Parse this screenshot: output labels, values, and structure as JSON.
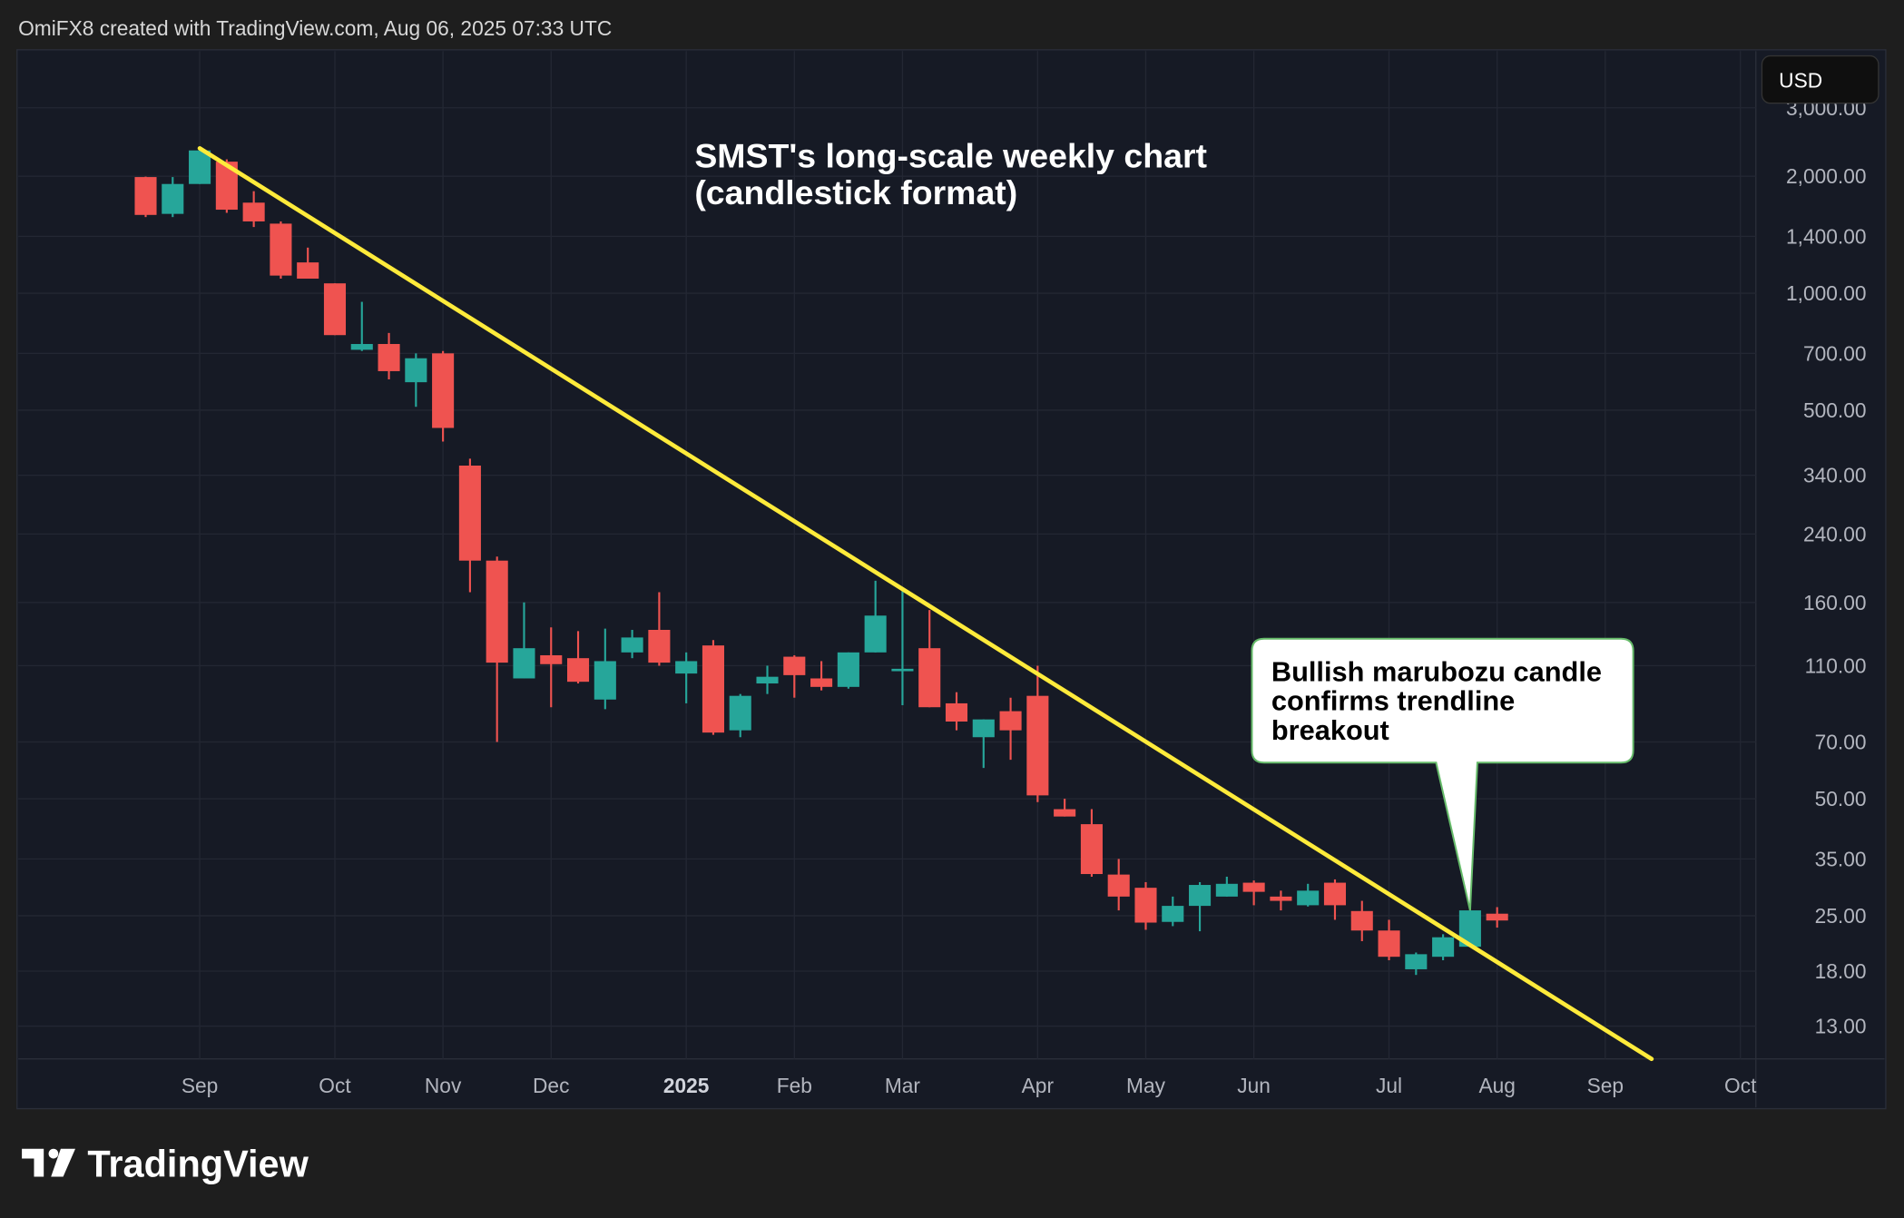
{
  "header": {
    "attribution": "OmiFX8 created with TradingView.com, Aug 06, 2025 07:33 UTC"
  },
  "currency_button": "USD",
  "branding": {
    "logo_text": "TradingView"
  },
  "colors": {
    "background": "#161a25",
    "up": "#26a69a",
    "down": "#ef5350",
    "trendline": "#ffeb3b",
    "callout_border": "#4caf50"
  },
  "chart_data": {
    "type": "candlestick",
    "title": "SMST's long-scale weekly chart",
    "subtitle": "(candlestick format)",
    "y_scale": "log",
    "ylim": [
      10.7,
      4200
    ],
    "xlim": [
      "2024-07-17",
      "2025-10-10"
    ],
    "grid": true,
    "y_ticks": [
      {
        "value": 3000,
        "label": "3,000.00"
      },
      {
        "value": 2000,
        "label": "2,000.00"
      },
      {
        "value": 1400,
        "label": "1,400.00"
      },
      {
        "value": 1000,
        "label": "1,000.00"
      },
      {
        "value": 700,
        "label": "700.00"
      },
      {
        "value": 500,
        "label": "500.00"
      },
      {
        "value": 340,
        "label": "340.00"
      },
      {
        "value": 240,
        "label": "240.00"
      },
      {
        "value": 160,
        "label": "160.00"
      },
      {
        "value": 110,
        "label": "110.00"
      },
      {
        "value": 70,
        "label": "70.00"
      },
      {
        "value": 50,
        "label": "50.00"
      },
      {
        "value": 35,
        "label": "35.00"
      },
      {
        "value": 25,
        "label": "25.00"
      },
      {
        "value": 18,
        "label": "18.00"
      },
      {
        "value": 13,
        "label": "13.00"
      }
    ],
    "x_ticks": [
      {
        "date": "2024-09-02",
        "label": "Sep"
      },
      {
        "date": "2024-10-07",
        "label": "Oct"
      },
      {
        "date": "2024-11-04",
        "label": "Nov"
      },
      {
        "date": "2024-12-02",
        "label": "Dec"
      },
      {
        "date": "2025-01-06",
        "label": "2025",
        "bold": true
      },
      {
        "date": "2025-02-03",
        "label": "Feb"
      },
      {
        "date": "2025-03-03",
        "label": "Mar"
      },
      {
        "date": "2025-04-07",
        "label": "Apr"
      },
      {
        "date": "2025-05-05",
        "label": "May"
      },
      {
        "date": "2025-06-02",
        "label": "Jun"
      },
      {
        "date": "2025-07-07",
        "label": "Jul"
      },
      {
        "date": "2025-08-04",
        "label": "Aug"
      },
      {
        "date": "2025-09-01",
        "label": "Sep"
      },
      {
        "date": "2025-10-06",
        "label": "Oct"
      }
    ],
    "first_week": "2024-08-19",
    "ohlc": [
      [
        1990,
        1995,
        1570,
        1590
      ],
      [
        1600,
        1990,
        1570,
        1910
      ],
      [
        1910,
        2360,
        1910,
        2330
      ],
      [
        2180,
        2210,
        1610,
        1640
      ],
      [
        1710,
        1830,
        1480,
        1530
      ],
      [
        1510,
        1530,
        1090,
        1110
      ],
      [
        1200,
        1310,
        1090,
        1090
      ],
      [
        1060,
        1060,
        780,
        780
      ],
      [
        715,
        950,
        710,
        740
      ],
      [
        740,
        790,
        600,
        630
      ],
      [
        590,
        700,
        510,
        680
      ],
      [
        700,
        710,
        415,
        450
      ],
      [
        360,
        375,
        170,
        205
      ],
      [
        205,
        210,
        70,
        112
      ],
      [
        102,
        160,
        102,
        122
      ],
      [
        117,
        138,
        86,
        111
      ],
      [
        115,
        135,
        99,
        100
      ],
      [
        90,
        137,
        85,
        113
      ],
      [
        119,
        136,
        115,
        130
      ],
      [
        136,
        170,
        110,
        112
      ],
      [
        105,
        119,
        88,
        113
      ],
      [
        124,
        128,
        73,
        74
      ],
      [
        75,
        93,
        72,
        92
      ],
      [
        99,
        110,
        93,
        103
      ],
      [
        116,
        117,
        91,
        104
      ],
      [
        102,
        113,
        95,
        97
      ],
      [
        97,
        119,
        96,
        119
      ],
      [
        119,
        182,
        119,
        148
      ],
      [
        107,
        175,
        87,
        108
      ],
      [
        122,
        153,
        86,
        86
      ],
      [
        88,
        94,
        75,
        79
      ],
      [
        72,
        80,
        60,
        80
      ],
      [
        84,
        91,
        63,
        75
      ],
      [
        92,
        110,
        49,
        51
      ],
      [
        47,
        50,
        45,
        45
      ],
      [
        43,
        47,
        31.5,
        32
      ],
      [
        31.9,
        35,
        25.8,
        28
      ],
      [
        29.5,
        30.5,
        23,
        24
      ],
      [
        24.1,
        28,
        23.5,
        26.5
      ],
      [
        26.5,
        30.5,
        22.8,
        30
      ],
      [
        28,
        31.5,
        28,
        30.2
      ],
      [
        30.4,
        30.8,
        26.6,
        28.8
      ],
      [
        28,
        29,
        25.8,
        27.3
      ],
      [
        26.6,
        30.2,
        26.4,
        29
      ],
      [
        30.4,
        31,
        24.4,
        26.6
      ],
      [
        25.7,
        27.3,
        21.5,
        22.9
      ],
      [
        22.9,
        24.4,
        19.2,
        19.6
      ],
      [
        18.2,
        20.1,
        17.6,
        19.9
      ],
      [
        19.6,
        22.4,
        19.2,
        22
      ],
      [
        20.8,
        25.8,
        20.8,
        25.8
      ],
      [
        25.3,
        26.3,
        23.3,
        24.3
      ]
    ],
    "trendline": {
      "from": {
        "date": "2024-09-02",
        "price": 2360
      },
      "to": {
        "date": "2025-09-13",
        "price": 10.7
      }
    },
    "annotations": [
      {
        "lines": [
          "Bullish marubozu candle",
          "confirms trendline",
          "breakout"
        ],
        "target": {
          "date": "2025-07-28",
          "price": 25.8
        }
      }
    ]
  }
}
